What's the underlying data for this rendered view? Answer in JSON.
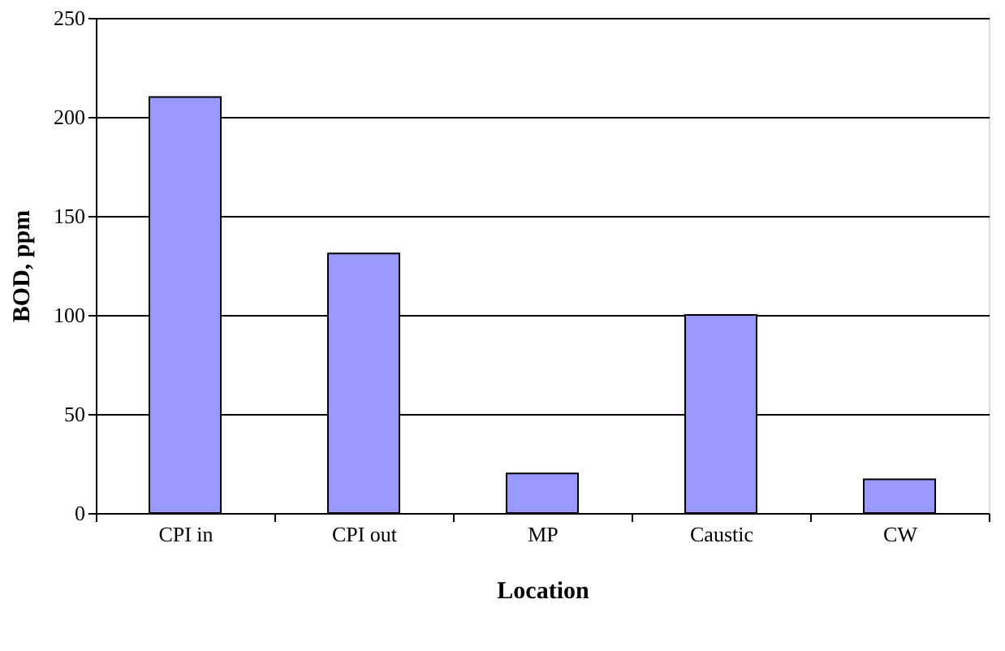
{
  "chart_data": {
    "type": "bar",
    "xlabel": "Location",
    "ylabel": "BOD, ppm",
    "categories": [
      "CPI in",
      "CPI out",
      "MP",
      "Caustic",
      "CW"
    ],
    "values": [
      210,
      131,
      20,
      100,
      17
    ],
    "color": "#9999ff",
    "ylim": [
      0,
      250
    ],
    "yticks": [
      0,
      50,
      100,
      150,
      200,
      250
    ],
    "grid": "y"
  }
}
